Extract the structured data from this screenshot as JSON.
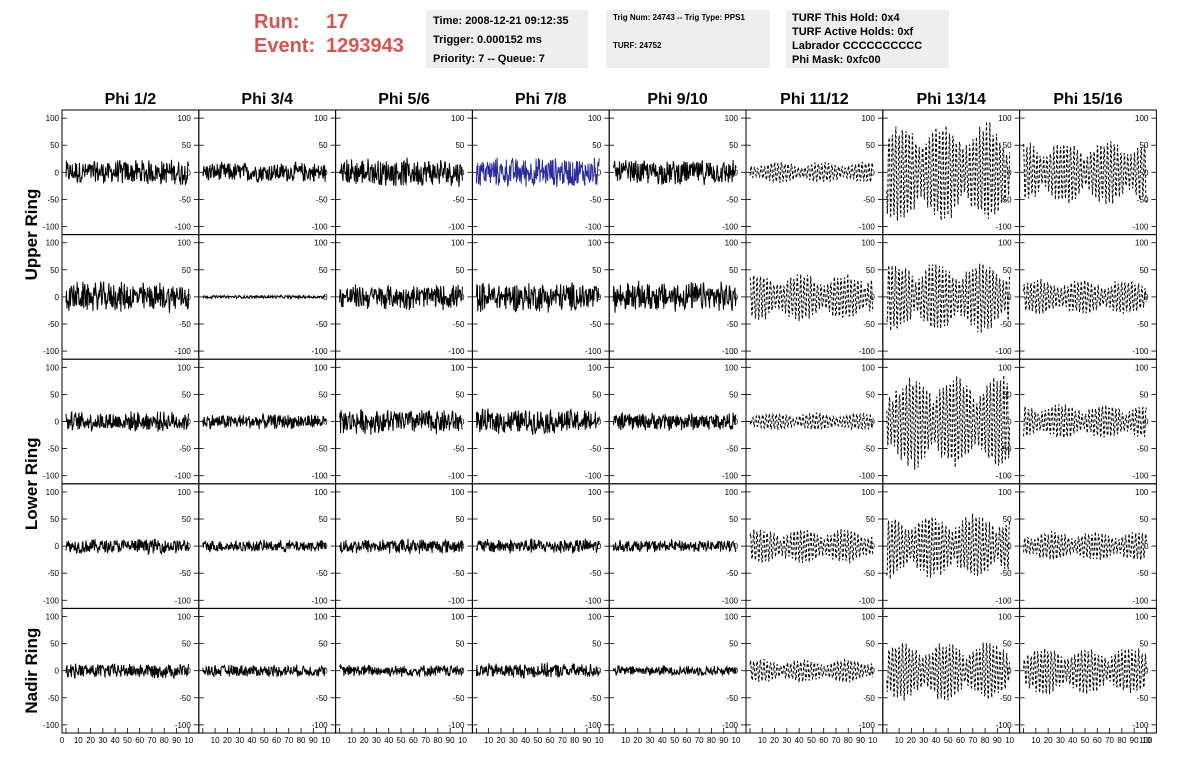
{
  "header": {
    "run_label": "Run:",
    "run_value": "17",
    "event_label": "Event:",
    "event_value": "1293943"
  },
  "info_box_1": {
    "time": "Time: 2008-12-21 09:12:35",
    "trigger": "Trigger: 0.000152 ms",
    "priority": "Priority: 7 -- Queue: 7"
  },
  "info_box_2": {
    "trig": "Trig Num: 24743 -- Trig Type: PPS1",
    "turf": "TURF: 24752"
  },
  "info_box_3": {
    "hold": "TURF This Hold: 0x4",
    "active": "TURF Active Holds: 0xf",
    "labrador": "Labrador CCCCCCCCCC",
    "phi_mask": "Phi Mask: 0xfc00"
  },
  "chart_data": {
    "type": "line",
    "columns": [
      "Phi 1/2",
      "Phi 3/4",
      "Phi 5/6",
      "Phi 7/8",
      "Phi 9/10",
      "Phi 11/12",
      "Phi 13/14",
      "Phi 15/16"
    ],
    "rows": [
      "Upper Ring",
      "Upper Ring",
      "Lower Ring",
      "Lower Ring",
      "Nadir Ring"
    ],
    "ring_labels": [
      "Upper Ring",
      "Lower Ring",
      "Nadir Ring"
    ],
    "xlim": [
      0,
      100
    ],
    "ylim": [
      -115,
      115
    ],
    "y_ticks": [
      -100,
      -50,
      0,
      50,
      100
    ],
    "x_ticks": [
      0,
      10,
      20,
      30,
      40,
      50,
      60,
      70,
      80,
      90,
      100
    ],
    "x_tick_labels": [
      "10",
      "20",
      "30",
      "40",
      "50",
      "60",
      "70",
      "80",
      "90",
      "10"
    ],
    "axis_zero_label": "0",
    "axis_end_label": "100",
    "samples_per_trace": 256,
    "amplitude": [
      [
        25,
        20,
        28,
        30,
        25,
        18,
        85,
        55
      ],
      [
        30,
        3,
        25,
        30,
        30,
        40,
        60,
        30
      ],
      [
        20,
        15,
        25,
        25,
        18,
        15,
        80,
        30
      ],
      [
        15,
        12,
        15,
        15,
        12,
        30,
        55,
        25
      ],
      [
        15,
        12,
        12,
        15,
        10,
        20,
        50,
        40
      ]
    ],
    "line_style": [
      [
        "solid",
        "solid",
        "solid",
        "solid",
        "solid",
        "dashed",
        "dashed",
        "dashed"
      ],
      [
        "solid",
        "solid",
        "solid",
        "solid",
        "solid",
        "dashed",
        "dashed",
        "dashed"
      ],
      [
        "solid",
        "solid",
        "solid",
        "solid",
        "solid",
        "dashed",
        "dashed",
        "dashed"
      ],
      [
        "solid",
        "solid",
        "solid",
        "solid",
        "solid",
        "dashed",
        "dashed",
        "dashed"
      ],
      [
        "solid",
        "solid",
        "solid",
        "solid",
        "solid",
        "dashed",
        "dashed",
        "dashed"
      ]
    ],
    "highlight": {
      "row": 0,
      "col": 3,
      "color": "#2b2b9e"
    },
    "colors": {
      "trace": "#000000",
      "highlight": "#2b2b9e",
      "title": "#d9534f",
      "info_bg": "#eeeeee"
    },
    "grid": false
  }
}
